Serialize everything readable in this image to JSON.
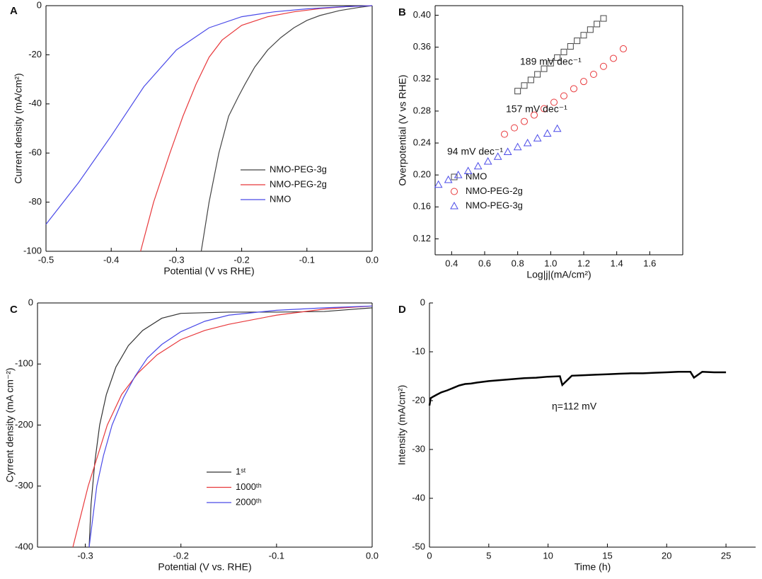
{
  "chart_data": [
    {
      "type": "line",
      "panel_label": "A",
      "xlabel": "Potential (V vs RHE)",
      "ylabel": "Current density (mA/cm²)",
      "xlim": [
        -0.5,
        0
      ],
      "ylim": [
        -100,
        0
      ],
      "xticks": [
        -0.5,
        -0.4,
        -0.3,
        -0.2,
        -0.1,
        {
          "value": 0,
          "label": "0.0"
        }
      ],
      "yticks": [
        -100,
        -80,
        -60,
        -40,
        -20,
        0
      ],
      "series": [
        {
          "name": "NMO-PEG-3g",
          "color": "#444444",
          "x": [
            -0.262,
            -0.25,
            -0.235,
            -0.22,
            -0.205,
            -0.195,
            -0.18,
            -0.16,
            -0.14,
            -0.12,
            -0.1,
            -0.08,
            -0.05,
            -0.02,
            0
          ],
          "values": [
            -100,
            -80,
            -60,
            -45,
            -37,
            -32,
            -25,
            -18,
            -13,
            -9,
            -6,
            -4,
            -2,
            -0.7,
            0
          ]
        },
        {
          "name": "NMO-PEG-2g",
          "color": "#e8383b",
          "x": [
            -0.355,
            -0.335,
            -0.31,
            -0.29,
            -0.27,
            -0.25,
            -0.23,
            -0.2,
            -0.16,
            -0.12,
            -0.08,
            -0.04,
            0
          ],
          "values": [
            -100,
            -80,
            -60,
            -45,
            -32,
            -21,
            -14,
            -8,
            -4.5,
            -2.5,
            -1.2,
            -0.4,
            0
          ]
        },
        {
          "name": "NMO",
          "color": "#4a4ae8",
          "x": [
            -0.5,
            -0.45,
            -0.4,
            -0.35,
            -0.3,
            -0.25,
            -0.2,
            -0.15,
            -0.1,
            -0.05,
            0
          ],
          "values": [
            -89,
            -72,
            -53,
            -33,
            -18,
            -9,
            -4.5,
            -2.5,
            -1.3,
            -0.5,
            0
          ]
        }
      ]
    },
    {
      "type": "scatter",
      "panel_label": "B",
      "xlabel": "Log|j|(mA/cm²)",
      "ylabel": "Overpotential (V vs RHE)",
      "xlim": [
        0.3,
        1.8
      ],
      "ylim": [
        0.1,
        0.412
      ],
      "xticks": [
        0.4,
        0.6,
        0.8,
        {
          "value": 1,
          "label": "1.0"
        },
        1.2,
        1.4,
        1.6
      ],
      "yticks": [
        0.12,
        0.16,
        {
          "value": 0.2,
          "label": "0.20"
        },
        0.24,
        0.28,
        0.32,
        0.36,
        {
          "value": 0.4,
          "label": "0.40"
        }
      ],
      "annotations": [
        "189 mV dec⁻¹",
        "157 mV dec⁻¹",
        "94 mV dec⁻¹"
      ],
      "series": [
        {
          "name": "NMO",
          "color": "#444444",
          "marker": "square",
          "x": [
            0.8,
            0.84,
            0.88,
            0.92,
            0.96,
            1.0,
            1.04,
            1.08,
            1.12,
            1.16,
            1.2,
            1.24,
            1.28,
            1.32
          ],
          "values": [
            0.305,
            0.312,
            0.319,
            0.326,
            0.333,
            0.34,
            0.347,
            0.354,
            0.361,
            0.368,
            0.375,
            0.382,
            0.389,
            0.396
          ]
        },
        {
          "name": "NMO-PEG-2g",
          "color": "#e8383b",
          "marker": "circle",
          "x": [
            0.72,
            0.78,
            0.84,
            0.9,
            0.96,
            1.02,
            1.08,
            1.14,
            1.2,
            1.26,
            1.32,
            1.38,
            1.44
          ],
          "values": [
            0.251,
            0.259,
            0.267,
            0.275,
            0.283,
            0.291,
            0.299,
            0.308,
            0.317,
            0.326,
            0.336,
            0.346,
            0.358
          ]
        },
        {
          "name": "NMO-PEG-3g",
          "color": "#4a4ae8",
          "marker": "triangle",
          "x": [
            0.32,
            0.38,
            0.44,
            0.5,
            0.56,
            0.62,
            0.68,
            0.74,
            0.8,
            0.86,
            0.92,
            0.98,
            1.04
          ],
          "values": [
            0.188,
            0.194,
            0.2,
            0.205,
            0.211,
            0.217,
            0.223,
            0.229,
            0.235,
            0.24,
            0.246,
            0.252,
            0.258
          ]
        }
      ]
    },
    {
      "type": "line",
      "panel_label": "C",
      "xlabel": "Potential (V vs. RHE)",
      "ylabel": "Cyrrent density (mA cm⁻²)",
      "xlim": [
        -0.35,
        0
      ],
      "ylim": [
        -400,
        0
      ],
      "xticks": [
        -0.3,
        -0.2,
        -0.1,
        {
          "value": 0,
          "label": "0.0"
        }
      ],
      "yticks": [
        -400,
        -300,
        -200,
        -100,
        0
      ],
      "series": [
        {
          "name": "1ˢᵗ",
          "color": "#333333",
          "x": [
            -0.296,
            -0.294,
            -0.29,
            -0.285,
            -0.278,
            -0.268,
            -0.255,
            -0.24,
            -0.22,
            -0.2,
            -0.15,
            -0.1,
            -0.05,
            0
          ],
          "values": [
            -400,
            -330,
            -260,
            -200,
            -150,
            -105,
            -70,
            -45,
            -25,
            -17,
            -15,
            -15,
            -14,
            -8
          ]
        },
        {
          "name": "1000ᵗʰ",
          "color": "#e8383b",
          "x": [
            -0.313,
            -0.305,
            -0.297,
            -0.287,
            -0.277,
            -0.262,
            -0.245,
            -0.225,
            -0.2,
            -0.175,
            -0.15,
            -0.1,
            -0.05,
            0
          ],
          "values": [
            -400,
            -350,
            -300,
            -250,
            -200,
            -150,
            -115,
            -85,
            -60,
            -45,
            -35,
            -20,
            -10,
            -5
          ]
        },
        {
          "name": "2000ᵗʰ",
          "color": "#4a4ae8",
          "x": [
            -0.296,
            -0.292,
            -0.288,
            -0.281,
            -0.272,
            -0.26,
            -0.248,
            -0.235,
            -0.22,
            -0.2,
            -0.175,
            -0.15,
            -0.1,
            -0.05,
            0
          ],
          "values": [
            -400,
            -350,
            -300,
            -250,
            -200,
            -155,
            -120,
            -90,
            -68,
            -47,
            -30,
            -20,
            -12,
            -8,
            -5
          ]
        }
      ]
    },
    {
      "type": "line",
      "panel_label": "D",
      "xlabel": "Time (h)",
      "ylabel": "Intensity (mA/cm²)",
      "xlim": [
        0,
        27.5
      ],
      "ylim": [
        -50,
        0
      ],
      "xticks": [
        0,
        5,
        10,
        15,
        20,
        25
      ],
      "yticks": [
        -50,
        -40,
        -30,
        -20,
        -10,
        0
      ],
      "annotations": [
        "η=112 mV"
      ],
      "series": [
        {
          "color": "#000000",
          "width": 2.5,
          "x": [
            0,
            0.1,
            0.3,
            0.6,
            1,
            1.5,
            2,
            2.5,
            3,
            3.5,
            4,
            5,
            6,
            7,
            8,
            9,
            10,
            11,
            11.2,
            12,
            13,
            14,
            15,
            16,
            17,
            18,
            19,
            20,
            21,
            22,
            22.3,
            23,
            24,
            25
          ],
          "values": [
            -21,
            -19.5,
            -19.2,
            -18.8,
            -18.3,
            -17.9,
            -17.4,
            -16.9,
            -16.6,
            -16.5,
            -16.3,
            -16.0,
            -15.8,
            -15.6,
            -15.4,
            -15.3,
            -15.1,
            -15.0,
            -16.8,
            -14.9,
            -14.8,
            -14.7,
            -14.6,
            -14.5,
            -14.4,
            -14.4,
            -14.3,
            -14.2,
            -14.1,
            -14.1,
            -15.3,
            -14.1,
            -14.2,
            -14.2
          ]
        }
      ]
    }
  ]
}
